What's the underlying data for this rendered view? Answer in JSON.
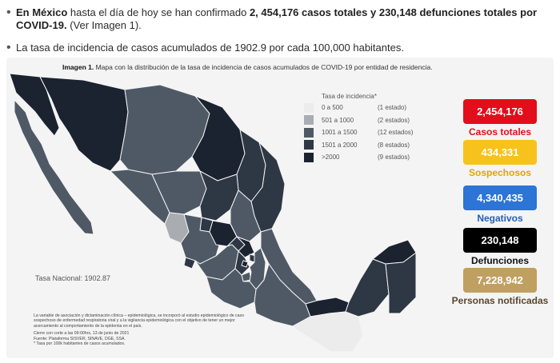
{
  "header": {
    "b1_country": "En México",
    "b1_mid": " hasta el día de hoy se han confirmado ",
    "b1_bold": "2, 454,176 casos totales y 230,148 defunciones totales por COVID-19.",
    "b1_tail": " (Ver Imagen 1).",
    "b2": "La tasa de incidencia de casos acumulados de 1902.9 por cada 100,000 habitantes."
  },
  "caption": {
    "label": "Imagen 1.",
    "text": " Mapa con la distribución de la tasa de incidencia de casos acumulados de COVID-19 por entidad de residencia."
  },
  "legend": {
    "title": "Tasa de incidencia*",
    "items": [
      {
        "range": "0 a   500",
        "count": "(1 estado)",
        "color": "#ececec"
      },
      {
        "range": "501 a  1000",
        "count": "(2 estados)",
        "color": "#a9adb2"
      },
      {
        "range": "1001 a  1500",
        "count": "(12 estados)",
        "color": "#4f5966"
      },
      {
        "range": "1501 a  2000",
        "count": "(8 estados)",
        "color": "#2e3744"
      },
      {
        "range": ">2000",
        "count": "(9 estados)",
        "color": "#1b2230"
      }
    ]
  },
  "stats": [
    {
      "value": "2,454,176",
      "label": "Casos totales",
      "color": "#e20e1b",
      "label_color": "#e20e1b"
    },
    {
      "value": "434,331",
      "label": "Sospechosos",
      "color": "#f7c21c",
      "label_color": "#e2a500"
    },
    {
      "value": "4,340,435",
      "label": "Negativos",
      "color": "#2c74d6",
      "label_color": "#1f5fb8"
    },
    {
      "value": "230,148",
      "label": "Defunciones",
      "color": "#000000",
      "label_color": "#111111"
    },
    {
      "value": "7,228,942",
      "label": "Personas notificadas",
      "color": "#c0a060",
      "label_color": "#5a4630"
    }
  ],
  "tasa_nacional": "Tasa Nacional: 1902.87",
  "notes": {
    "p1": "La variable de asociación y dictaminación clínica – epidemiológica, se incorporó al estudio epidemiológico de caso sospechoso de enfermedad respiratoria viral y a la vigilancia epidemiológica con el objetivo de tener un mejor acercamiento al comportamiento de la epidemia en el país.",
    "p2": "Cierre con corte a las 09:00hrs, 13 de junio de 2021",
    "p3": "Fuente: Plataforma SISVER, SINAVE, DGE, SSA.",
    "p4": "* Tasa por 100k habitantes de casos acumulados."
  }
}
